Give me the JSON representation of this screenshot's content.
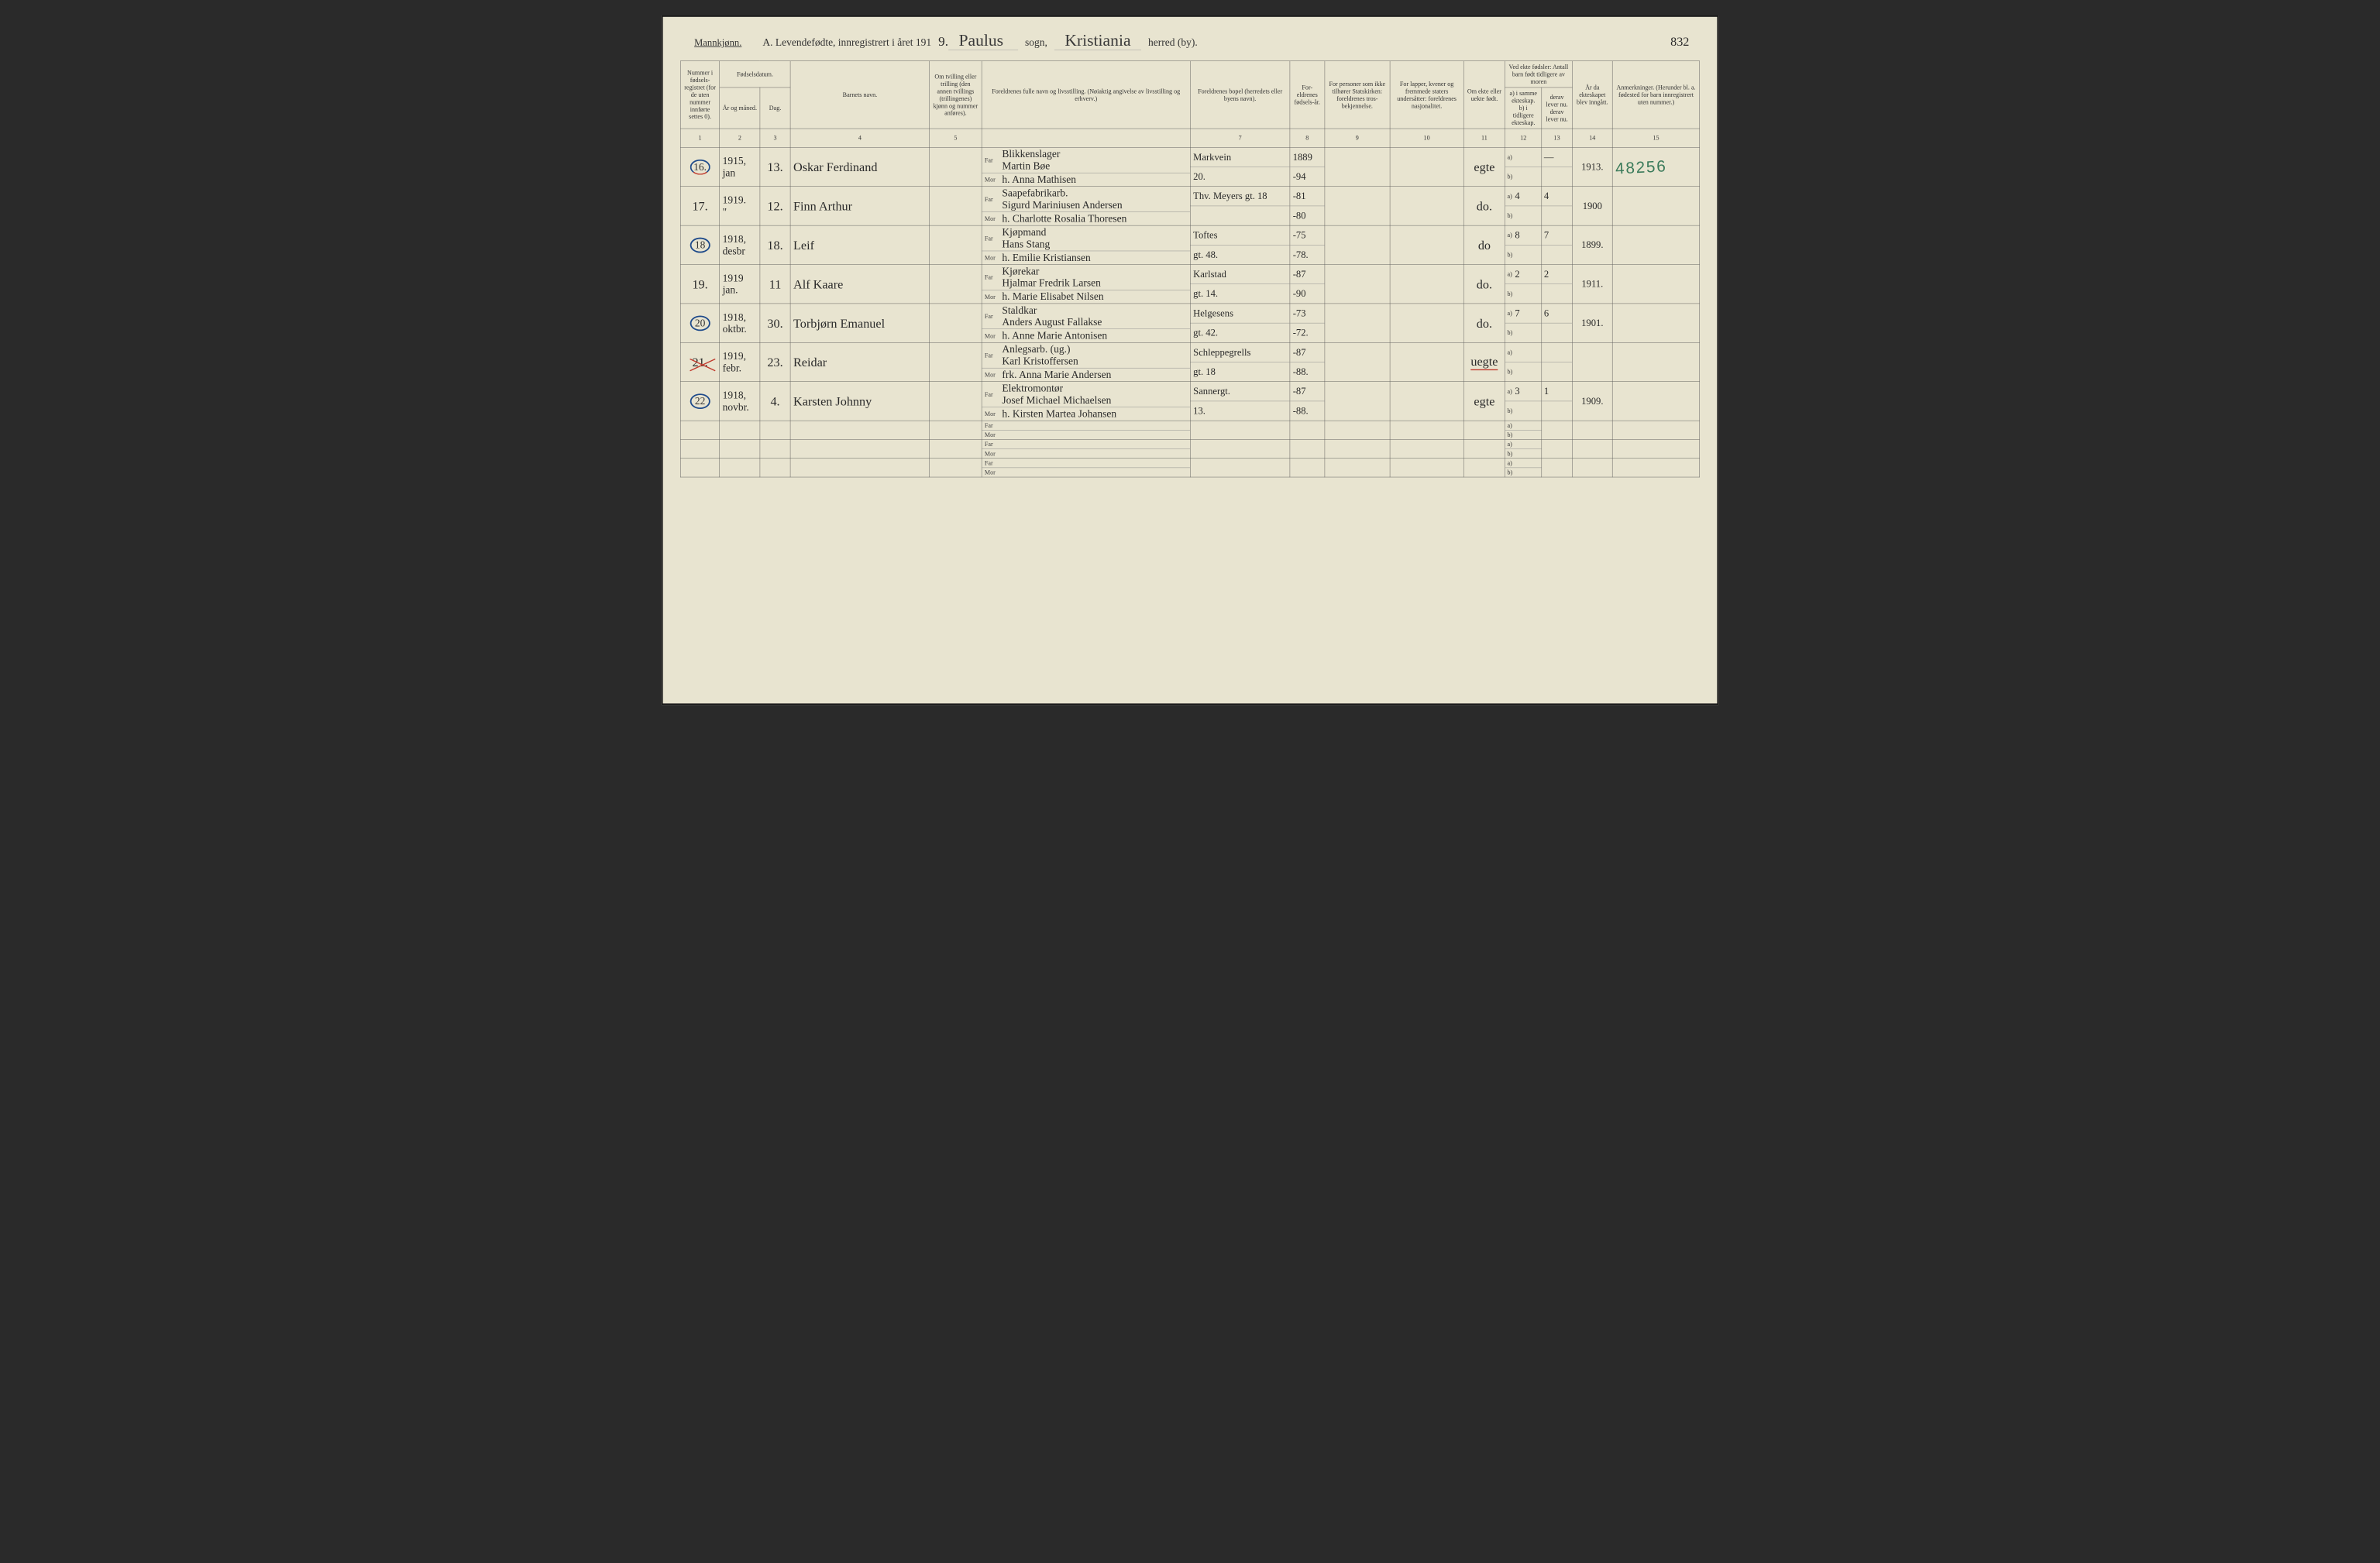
{
  "colors": {
    "paper": "#e8e4d0",
    "ink": "#2a2a2a",
    "border": "#555555",
    "blue_pen": "#1e4a8a",
    "red_pen": "#c0392b",
    "stamp_green": "#3a7a5a",
    "background": "#2a2a2a"
  },
  "typography": {
    "body_font": "Georgia, Times New Roman, serif",
    "script_font": "Brush Script MT, cursive",
    "header_fontsize": 30,
    "cell_fontsize": 20,
    "script_fontsize": 36
  },
  "header": {
    "gender": "Mannkjønn.",
    "title_prefix": "A.   Levendefødte, innregistrert i året 191",
    "year_suffix": "9.",
    "parish_label": "sogn,",
    "parish": "Paulus",
    "district_label": "herred (by).",
    "district": "Kristiania",
    "page_number": "832"
  },
  "stamp": "48256",
  "columns": {
    "c1": "Nummer i fødsels-registret (for de uten nummer innførte settes 0).",
    "c2_group": "Fødselsdatum.",
    "c2": "År og måned.",
    "c3": "Dag.",
    "c4": "Barnets navn.",
    "c5": "Om tvilling eller trilling (den annen tvillings (trillingenes) kjønn og nummer anføres).",
    "c6": "Foreldrenes fulle navn og livsstilling. (Nøiaktig angivelse av livsstilling og erhverv.)",
    "c7": "Foreldrenes bopel (herredets eller byens navn).",
    "c8": "For-eldrenes fødsels-år.",
    "c9": "For personer som ikke tilhører Statskirken: foreldrenes tros-bekjennelse.",
    "c10": "For lapper, kvener og fremmede staters undersåtter: foreldrenes nasjonalitet.",
    "c11": "Om ekte eller uekte født.",
    "c12_13_group": "Ved ekte fødsler: Antall barn født tidligere av moren",
    "c12": "a) i samme ekteskap.\nb) i tidligere ekteskap.",
    "c13": "derav lever nu.\nderav lever nu.",
    "c14": "År da ekteskapet blev inngått.",
    "c15": "Anmerkninger. (Herunder bl. a. fødested for barn innregistrert uten nummer.)",
    "far": "Far",
    "mor": "Mor",
    "a": "a)",
    "b": "b)"
  },
  "col_numbers": [
    "1",
    "2",
    "3",
    "4",
    "5",
    "",
    "7",
    "8",
    "9",
    "10",
    "11",
    "12",
    "13",
    "14",
    "15"
  ],
  "rows": [
    {
      "num": "16.",
      "circled": true,
      "red_underline_num": true,
      "year": "1915,",
      "month": "jan",
      "day": "13.",
      "name": "Oskar Ferdinand",
      "far_occ": "Blikkenslager",
      "far": "Martin Bøe",
      "far_addr": "Markvein",
      "far_year": "1889",
      "mor": "h. Anna Mathisen",
      "mor_addr": "20.",
      "mor_year": "-94",
      "legit": "egte",
      "a12": "",
      "a13": "—",
      "married": "1913.",
      "note_stamp": true
    },
    {
      "num": "17.",
      "circled": false,
      "year": "1919.",
      "month": "\"",
      "day": "12.",
      "name": "Finn Arthur",
      "far_occ": "Saapefabrikarb.",
      "far": "Sigurd Mariniusen Andersen",
      "far_addr": "Thv. Meyers gt. 18",
      "far_year": "-81",
      "mor": "h. Charlotte Rosalia Thoresen",
      "mor_addr": "",
      "mor_year": "-80",
      "legit": "do.",
      "a12": "4",
      "a13": "4",
      "married": "1900"
    },
    {
      "num": "18",
      "circled": true,
      "year": "1918,",
      "month": "desbr",
      "day": "18.",
      "name": "Leif",
      "far_occ": "Kjøpmand",
      "far": "Hans Stang",
      "far_addr": "Toftes",
      "far_year": "-75",
      "mor": "h. Emilie Kristiansen",
      "mor_addr": "gt. 48.",
      "mor_year": "-78.",
      "legit": "do",
      "a12": "8",
      "a13": "7",
      "married": "1899."
    },
    {
      "num": "19.",
      "circled": false,
      "year": "1919",
      "month": "jan.",
      "day": "11",
      "name": "Alf Kaare",
      "far_occ": "Kjørekar",
      "far": "Hjalmar Fredrik Larsen",
      "far_addr": "Karlstad",
      "far_year": "-87",
      "mor": "h. Marie Elisabet Nilsen",
      "mor_addr": "gt. 14.",
      "mor_year": "-90",
      "legit": "do.",
      "a12": "2",
      "a13": "2",
      "married": "1911."
    },
    {
      "num": "20",
      "circled": true,
      "year": "1918,",
      "month": "oktbr.",
      "day": "30.",
      "name": "Torbjørn Emanuel",
      "far_occ": "Staldkar",
      "far": "Anders August Fallakse",
      "far_addr": "Helgesens",
      "far_year": "-73",
      "mor": "h. Anne Marie Antonisen",
      "mor_addr": "gt. 42.",
      "mor_year": "-72.",
      "legit": "do.",
      "a12": "7",
      "a13": "6",
      "married": "1901."
    },
    {
      "num": "21.",
      "circled": false,
      "red_x": true,
      "year": "1919,",
      "month": "febr.",
      "day": "23.",
      "name": "Reidar",
      "far_occ": "Anlegsarb. (ug.)",
      "far": "Karl Kristoffersen",
      "far_addr": "Schleppegrells",
      "far_year": "-87",
      "mor": "frk. Anna Marie Andersen",
      "mor_addr": "gt. 18",
      "mor_year": "-88.",
      "legit": "uegte",
      "legit_red": true,
      "a12": "",
      "a13": "",
      "married": ""
    },
    {
      "num": "22",
      "circled": true,
      "year": "1918,",
      "month": "novbr.",
      "day": "4.",
      "name": "Karsten Johnny",
      "far_occ": "Elektromontør",
      "far": "Josef Michael Michaelsen",
      "far_addr": "Sannergt.",
      "far_year": "-87",
      "mor": "h. Kirsten Martea Johansen",
      "mor_addr": "13.",
      "mor_year": "-88.",
      "legit": "egte",
      "a12": "3",
      "a13": "1",
      "married": "1909."
    }
  ],
  "empty_rows": 3
}
